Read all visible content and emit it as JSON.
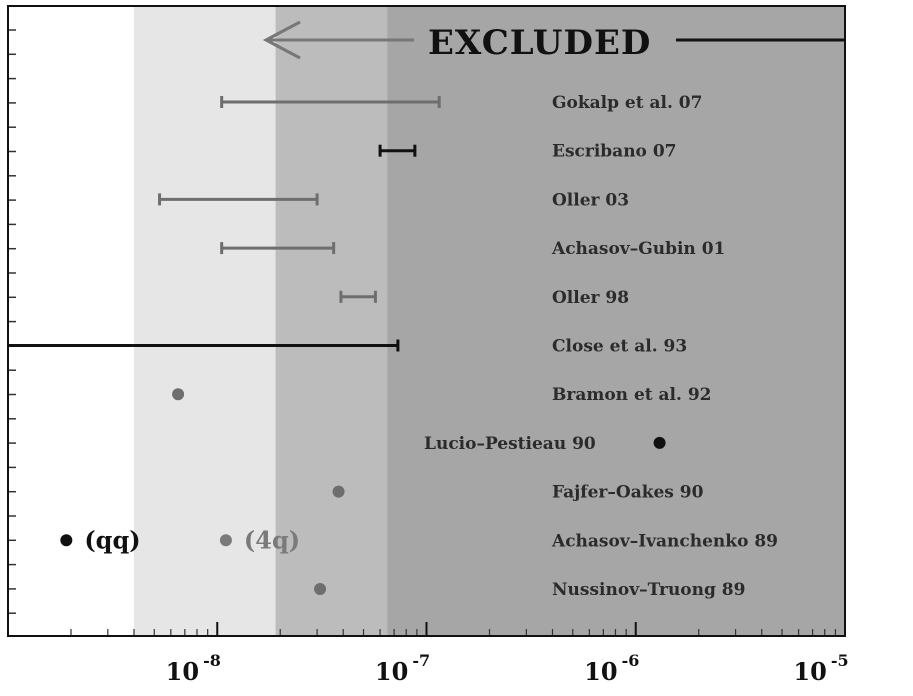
{
  "chart_data": {
    "type": "scatter",
    "x_scale": "log",
    "xlim": [
      1e-09,
      1e-05
    ],
    "x_tick_labels": [
      {
        "base": "10",
        "exp": "-8",
        "value": 1e-08
      },
      {
        "base": "10",
        "exp": "-7",
        "value": 1e-07
      },
      {
        "base": "10",
        "exp": "-6",
        "value": 1e-06
      },
      {
        "base": "10",
        "exp": "-5",
        "value": 1e-05
      }
    ],
    "excluded_label": "EXCLUDED",
    "shaded_regions": [
      {
        "from": 4e-09,
        "to": 1e-05,
        "color": "#e6e6e6"
      },
      {
        "from": 1.9e-08,
        "to": 1e-05,
        "color": "#bcbcbc"
      },
      {
        "from": 6.5e-08,
        "to": 1e-05,
        "color": "#a6a6a6"
      }
    ],
    "entries": [
      {
        "label": "Gokalp et al. 07",
        "kind": "range",
        "low": 1.05e-08,
        "high": 1.15e-07,
        "color": "#6e6e6e"
      },
      {
        "label": "Escribano 07",
        "kind": "range",
        "low": 6e-08,
        "high": 8.8e-08,
        "color": "#111111"
      },
      {
        "label": "Oller 03",
        "kind": "range",
        "low": 5.3e-09,
        "high": 3e-08,
        "color": "#6e6e6e"
      },
      {
        "label": "Achasov–Gubin 01",
        "kind": "range",
        "low": 1.05e-08,
        "high": 3.6e-08,
        "color": "#6e6e6e"
      },
      {
        "label": "Oller 98",
        "kind": "range",
        "low": 3.9e-08,
        "high": 5.7e-08,
        "color": "#6e6e6e"
      },
      {
        "label": "Close et al. 93",
        "kind": "upper-limit",
        "high": 7.3e-08,
        "color": "#111111"
      },
      {
        "label": "Bramon et al. 92",
        "kind": "point",
        "value": 6.5e-09,
        "color": "#6e6e6e"
      },
      {
        "label": "Lucio–Pestieau 90",
        "kind": "point",
        "value": 1.3e-06,
        "color": "#111111"
      },
      {
        "label": "Fajfer–Oakes 90",
        "kind": "point",
        "value": 3.8e-08,
        "color": "#6e6e6e"
      },
      {
        "label": "Achasov–Ivanchenko 89",
        "kind": "pair",
        "values": [
          1.9e-09,
          1.1e-08
        ],
        "value_labels": [
          "(qq)",
          "(4q)"
        ],
        "colors": [
          "#111111",
          "#7a7a7a"
        ]
      },
      {
        "label": "Nussinov–Truong 89",
        "kind": "point",
        "value": 3.1e-08,
        "color": "#6e6e6e"
      }
    ]
  }
}
